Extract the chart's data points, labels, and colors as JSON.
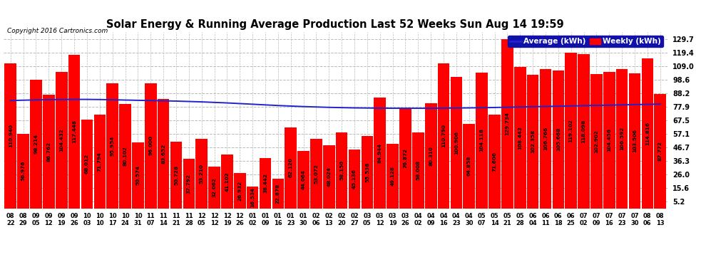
{
  "title": "Solar Energy & Running Average Production Last 52 Weeks Sun Aug 14 19:59",
  "copyright": "Copyright 2016 Cartronics.com",
  "legend_avg": "Average (kWh)",
  "legend_weekly": "Weekly (kWh)",
  "bar_color": "#ff0000",
  "avg_line_color": "#2222cc",
  "background_color": "#ffffff",
  "plot_bg_color": "#ffffff",
  "grid_color": "#bbbbbb",
  "ylim": [
    0,
    135
  ],
  "yticks": [
    5.2,
    15.6,
    26.0,
    36.3,
    46.7,
    57.1,
    67.5,
    77.9,
    88.2,
    98.6,
    109.0,
    119.4,
    129.7
  ],
  "dates": [
    "08-22",
    "08-29",
    "09-05",
    "09-12",
    "09-19",
    "09-26",
    "10-03",
    "10-10",
    "10-17",
    "10-24",
    "10-31",
    "11-07",
    "11-14",
    "11-21",
    "11-28",
    "12-05",
    "12-12",
    "12-19",
    "12-26",
    "01-02",
    "01-09",
    "01-16",
    "01-23",
    "01-30",
    "02-06",
    "02-13",
    "02-20",
    "02-27",
    "03-05",
    "03-12",
    "03-19",
    "03-26",
    "04-02",
    "04-09",
    "04-16",
    "04-23",
    "04-30",
    "05-07",
    "05-14",
    "05-21",
    "05-28",
    "06-04",
    "06-11",
    "06-18",
    "06-25",
    "07-02",
    "07-09",
    "07-16",
    "07-23",
    "07-30",
    "08-06",
    "08-13"
  ],
  "values": [
    110.94,
    56.976,
    98.214,
    86.762,
    104.432,
    117.448,
    68.012,
    71.794,
    95.954,
    80.102,
    50.574,
    96.0,
    83.652,
    50.728,
    37.792,
    53.21,
    32.062,
    41.102,
    26.932,
    16.534,
    38.442,
    22.878,
    62.12,
    44.064,
    53.072,
    48.024,
    58.15,
    45.136,
    55.536,
    84.944,
    49.128,
    76.872,
    58.008,
    80.31,
    110.79,
    100.906,
    64.858,
    104.118,
    71.606,
    129.734,
    108.442,
    102.358,
    106.766,
    105.668,
    119.102,
    118.098,
    102.902,
    104.456,
    106.592,
    103.506,
    114.816,
    87.772
  ],
  "avg_values": [
    82.5,
    82.8,
    83.0,
    83.2,
    83.3,
    83.4,
    83.4,
    83.3,
    83.1,
    82.9,
    82.7,
    82.5,
    82.3,
    82.1,
    81.8,
    81.5,
    81.1,
    80.7,
    80.2,
    79.7,
    79.2,
    78.7,
    78.3,
    77.9,
    77.6,
    77.3,
    77.1,
    76.9,
    76.8,
    76.7,
    76.6,
    76.6,
    76.6,
    76.6,
    76.7,
    76.8,
    76.9,
    77.0,
    77.2,
    77.4,
    77.6,
    77.8,
    78.0,
    78.2,
    78.4,
    78.6,
    78.8,
    79.0,
    79.2,
    79.4,
    79.6,
    79.8
  ],
  "label_fontsize": 5.2,
  "title_fontsize": 10.5,
  "tick_fontsize": 7.0,
  "xtick_fontsize": 6.0
}
